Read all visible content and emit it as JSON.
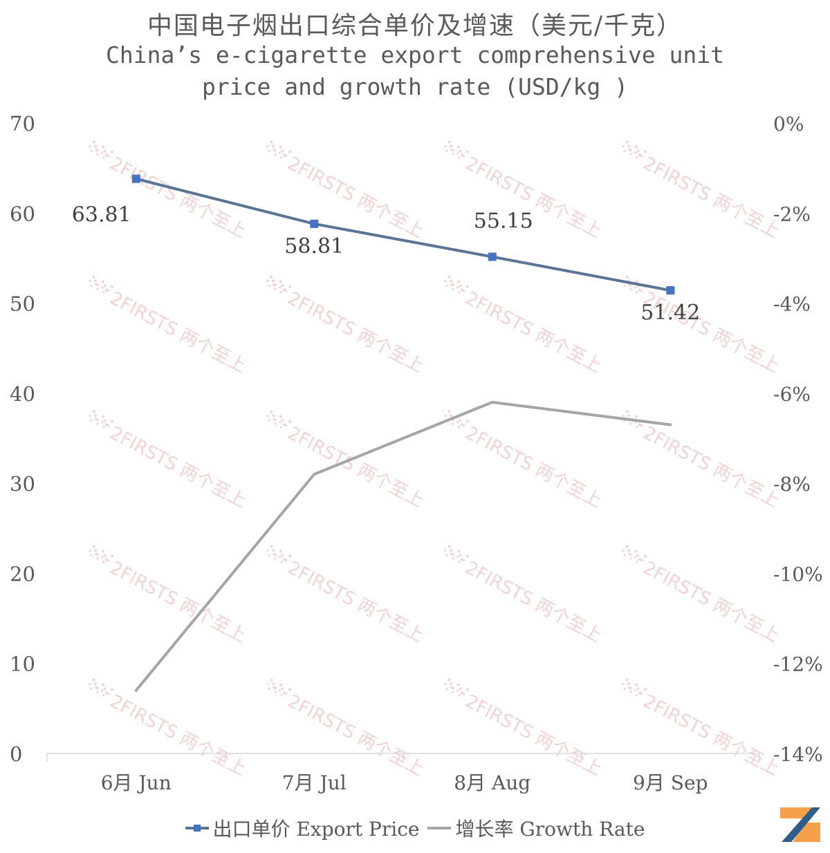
{
  "title_cn": "中国电子烟出口综合单价及增速（美元/千克）",
  "title_en_line1": "China’s e-cigarette export comprehensive unit",
  "title_en_line2": "price and growth rate (USD/kg )",
  "watermark_text": "2FIRSTS 两个至上",
  "colors": {
    "price_line": "#5b7394",
    "price_marker": "#4472c4",
    "growth_line": "#a5a5a5",
    "axis_text": "#595959",
    "axis_line": "#d9d9d9",
    "watermark": "#f0cfcf",
    "logo_orange": "#f5a14c",
    "logo_blue": "#2f5d8a"
  },
  "chart_data": {
    "type": "line",
    "categories": [
      "6月 Jun",
      "7月 Jul",
      "8月 Aug",
      "9月 Sep"
    ],
    "series": [
      {
        "name": "出口单价 Export Price",
        "axis": "left",
        "values": [
          63.81,
          58.81,
          55.15,
          51.42
        ],
        "data_labels": [
          "63.81",
          "58.81",
          "55.15",
          "51.42"
        ],
        "marker": "square"
      },
      {
        "name": "增长率 Growth Rate",
        "axis": "right",
        "values": [
          -12.6,
          -7.8,
          -6.2,
          -6.7
        ],
        "marker": "none"
      }
    ],
    "y_left": {
      "ylim": [
        0,
        70
      ],
      "ticks": [
        0,
        10,
        20,
        30,
        40,
        50,
        60,
        70
      ],
      "tick_labels": [
        "0",
        "10",
        "20",
        "30",
        "40",
        "50",
        "60",
        "70"
      ]
    },
    "y_right": {
      "ylim": [
        -14,
        0
      ],
      "ticks": [
        -14,
        -12,
        -10,
        -8,
        -6,
        -4,
        -2,
        0
      ],
      "tick_labels": [
        "-14%",
        "-12%",
        "-10%",
        "-8%",
        "-6%",
        "-4%",
        "-2%",
        "0%"
      ]
    },
    "grid": false,
    "legend_position": "bottom"
  }
}
